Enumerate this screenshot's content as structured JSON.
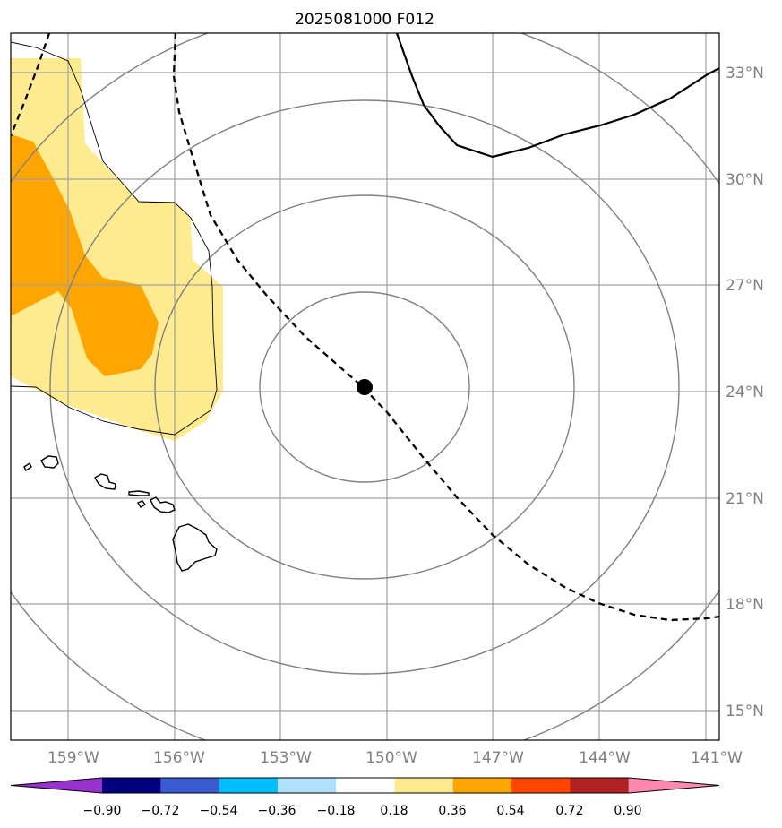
{
  "title": "2025081000 F012",
  "map": {
    "lon_labels": [
      "159°W",
      "156°W",
      "153°W",
      "150°W",
      "147°W",
      "144°W",
      "141°W"
    ],
    "lat_labels": [
      "33°N",
      "30°N",
      "27°N",
      "24°N",
      "21°N",
      "18°N",
      "15°N"
    ],
    "storm_center": {
      "lat": 24.1,
      "lon": -150.6
    },
    "fill_colors": {
      "light_yellow": "#ffeb8f",
      "orange": "#ffa500"
    }
  },
  "colorbar": {
    "tick_labels": [
      "−0.90",
      "−0.72",
      "−0.54",
      "−0.36",
      "−0.18",
      "0.18",
      "0.36",
      "0.54",
      "0.72",
      "0.90"
    ],
    "colors": [
      "#9932cc",
      "#000080",
      "#3a5bd2",
      "#00bfff",
      "#b0e0ff",
      "#ffffff",
      "#ffeb8f",
      "#ffa500",
      "#ff4500",
      "#b22222",
      "#ff88b0"
    ]
  }
}
